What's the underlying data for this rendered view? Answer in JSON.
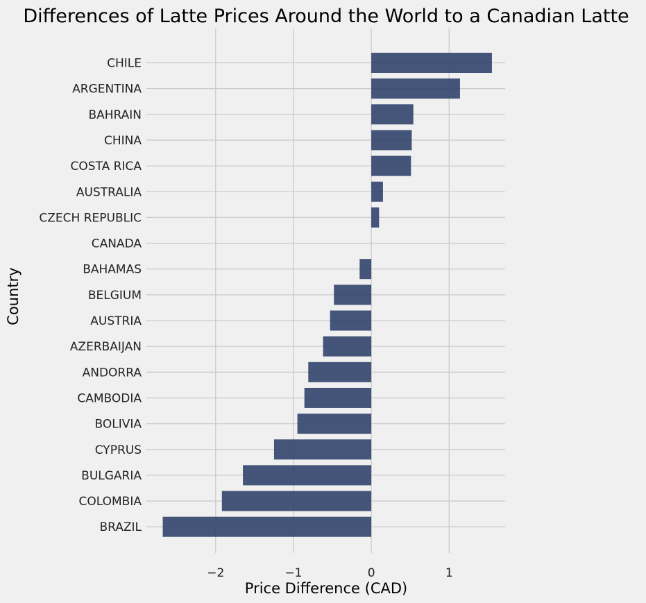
{
  "chart_data": {
    "type": "bar",
    "orientation": "horizontal",
    "title": "Differences of Latte Prices Around the World to a Canadian Latte",
    "xlabel": "Price Difference (CAD)",
    "ylabel": "Country",
    "categories": [
      "CHILE",
      "ARGENTINA",
      "BAHRAIN",
      "CHINA",
      "COSTA RICA",
      "AUSTRALIA",
      "CZECH REPUBLIC",
      "CANADA",
      "BAHAMAS",
      "BELGIUM",
      "AUSTRIA",
      "AZERBAIJAN",
      "ANDORRA",
      "CAMBODIA",
      "BOLIVIA",
      "CYPRUS",
      "BULGARIA",
      "COLOMBIA",
      "BRAZIL"
    ],
    "values": [
      1.55,
      1.14,
      0.54,
      0.52,
      0.51,
      0.15,
      0.1,
      0.0,
      -0.15,
      -0.48,
      -0.53,
      -0.62,
      -0.81,
      -0.86,
      -0.95,
      -1.25,
      -1.65,
      -1.92,
      -2.68
    ],
    "xlim": [
      -2.89,
      1.72
    ],
    "xticks": [
      -2,
      -1,
      0,
      1
    ],
    "xtick_labels": [
      "−2",
      "−1",
      "0",
      "1"
    ],
    "grid": true,
    "legend": "none",
    "colors": {
      "background": "#f0f0f0",
      "bar": "#31446b",
      "grid": "#cbcbcb",
      "text": "#222222"
    }
  }
}
